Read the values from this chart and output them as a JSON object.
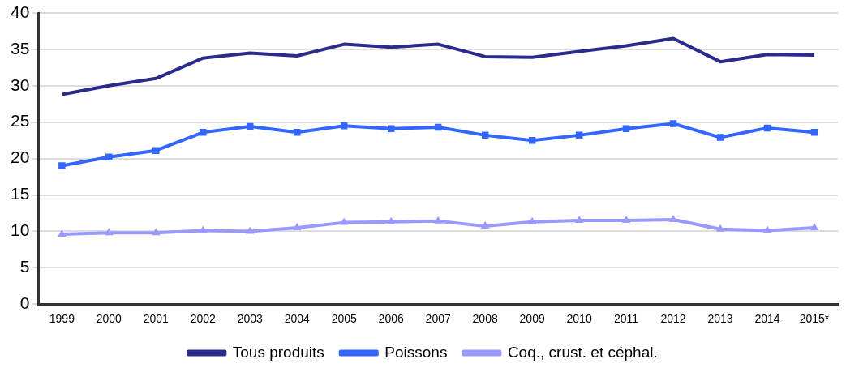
{
  "chart_data": {
    "type": "line",
    "categories": [
      "1999",
      "2000",
      "2001",
      "2002",
      "2003",
      "2004",
      "2005",
      "2006",
      "2007",
      "2008",
      "2009",
      "2010",
      "2011",
      "2012",
      "2013",
      "2014",
      "2015*"
    ],
    "series": [
      {
        "name": "Tous produits",
        "color": "#2b2b8c",
        "marker": "none",
        "values": [
          28.8,
          30.0,
          31.0,
          33.8,
          34.5,
          34.1,
          35.7,
          35.3,
          35.7,
          34.0,
          33.9,
          34.7,
          35.5,
          36.5,
          33.3,
          34.3,
          34.2
        ]
      },
      {
        "name": "Poissons",
        "color": "#3366ff",
        "marker": "square",
        "values": [
          19.0,
          20.2,
          21.1,
          23.6,
          24.4,
          23.6,
          24.5,
          24.1,
          24.3,
          23.2,
          22.5,
          23.2,
          24.1,
          24.8,
          22.9,
          24.2,
          23.6
        ]
      },
      {
        "name": "Coq., crust. et céphal.",
        "color": "#9999ff",
        "marker": "triangle",
        "values": [
          9.6,
          9.8,
          9.8,
          10.1,
          10.0,
          10.5,
          11.2,
          11.3,
          11.4,
          10.7,
          11.3,
          11.5,
          11.5,
          11.6,
          10.3,
          10.1,
          10.5
        ]
      }
    ],
    "ylim": [
      0,
      40
    ],
    "yticks": [
      0,
      5,
      10,
      15,
      20,
      25,
      30,
      35,
      40
    ],
    "grid": "y",
    "legend": "bottom"
  }
}
